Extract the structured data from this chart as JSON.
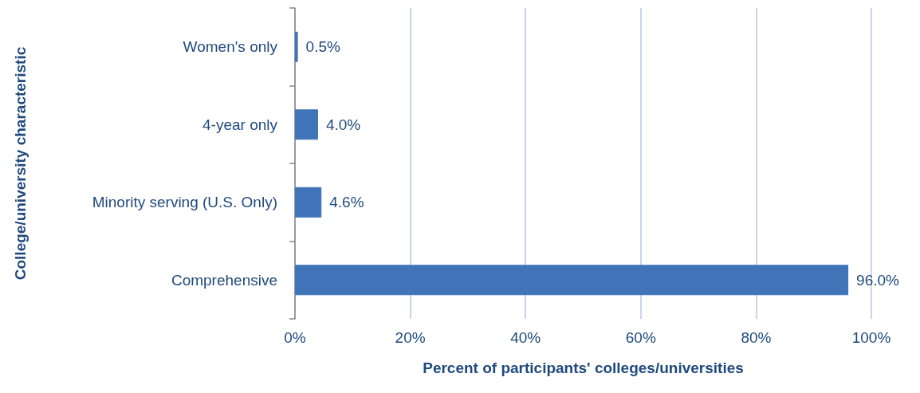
{
  "chart_data": {
    "type": "bar",
    "orientation": "horizontal",
    "xlabel": "Percent of participants' colleges/universities",
    "ylabel": "College/university characteristic",
    "categories": [
      "Women's only",
      "4-year only",
      "Minority serving (U.S. Only)",
      "Comprehensive"
    ],
    "values": [
      0.5,
      4.0,
      4.6,
      96.0
    ],
    "value_labels": [
      "0.5%",
      "4.0%",
      "4.6%",
      "96.0%"
    ],
    "color": "#3f74b8",
    "xlim": [
      0,
      100
    ],
    "xticks": [
      {
        "value": 0,
        "label": "0%"
      },
      {
        "value": 20,
        "label": "20%"
      },
      {
        "value": 40,
        "label": "40%"
      },
      {
        "value": 60,
        "label": "60%"
      },
      {
        "value": 80,
        "label": "80%"
      },
      {
        "value": 100,
        "label": "100%"
      }
    ],
    "grid": "x"
  }
}
